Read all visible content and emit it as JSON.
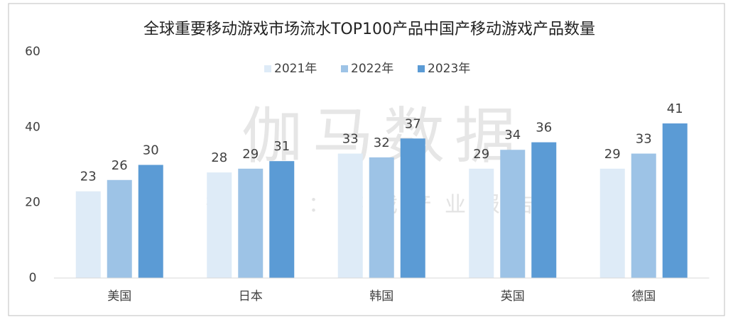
{
  "chart_data": {
    "type": "bar",
    "title": "全球重要移动游戏市场流水TOP100产品中国产移动游戏产品数量",
    "categories": [
      "美国",
      "日本",
      "韩国",
      "英国",
      "德国"
    ],
    "series": [
      {
        "name": "2021年",
        "color": "#deebf7",
        "values": [
          23,
          28,
          33,
          29,
          29
        ]
      },
      {
        "name": "2022年",
        "color": "#9dc3e6",
        "values": [
          26,
          29,
          32,
          34,
          33
        ]
      },
      {
        "name": "2023年",
        "color": "#5b9bd5",
        "values": [
          30,
          31,
          37,
          36,
          41
        ]
      }
    ],
    "ylim": [
      0,
      60
    ],
    "yticks": [
      0,
      20,
      40,
      60
    ],
    "grid": false,
    "legend": "top",
    "watermark": [
      "伽马数据",
      "微信号：游戏产业报告"
    ]
  }
}
